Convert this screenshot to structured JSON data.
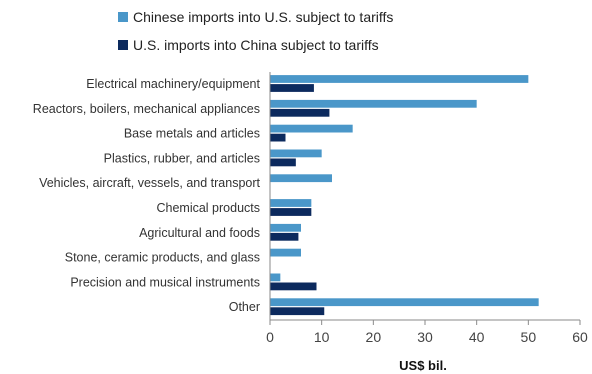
{
  "chart_data": {
    "type": "bar",
    "orientation": "horizontal",
    "categories": [
      "Electrical machinery/equipment",
      "Reactors, boilers, mechanical appliances",
      "Base metals and articles",
      "Plastics, rubber, and articles",
      "Vehicles, aircraft, vessels, and transport",
      "Chemical products",
      "Agricultural and foods",
      "Stone, ceramic products, and glass",
      "Precision and musical instruments",
      "Other"
    ],
    "series": [
      {
        "name": "Chinese imports into U.S. subject to tariffs",
        "color": "#4a97c9",
        "values": [
          50,
          40,
          16,
          10,
          12,
          8,
          6,
          6,
          2,
          52
        ]
      },
      {
        "name": "U.S. imports into China subject to tariffs",
        "color": "#0c2a5e",
        "values": [
          8.5,
          11.5,
          3,
          5,
          0,
          8,
          5.5,
          0,
          9,
          10.5
        ]
      }
    ],
    "xlabel": "US$ bil.",
    "ylabel": "",
    "xlim": [
      0,
      60
    ],
    "xticks": [
      0,
      10,
      20,
      30,
      40,
      50,
      60
    ],
    "grid": false,
    "legend_position": "top"
  }
}
